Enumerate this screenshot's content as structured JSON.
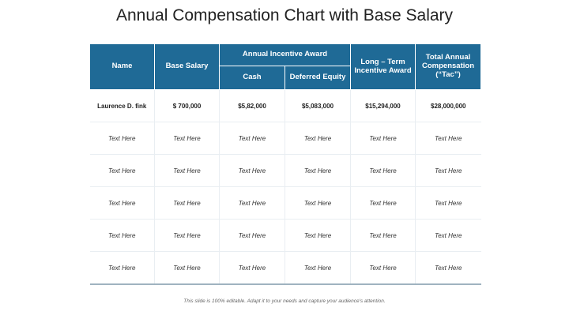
{
  "title": "Annual Compensation Chart with Base Salary",
  "headers": {
    "name": "Name",
    "base_salary": "Base Salary",
    "annual_incentive_award": "Annual Incentive Award",
    "cash": "Cash",
    "deferred_equity": "Deferred Equity",
    "long_term_incentive_award": "Long – Term Incentive Award",
    "total_annual_compensation": "Total Annual Compensation (“Tac”)"
  },
  "rows": [
    [
      "Laurence D. fink",
      "$ 700,000",
      "$5,82,000",
      "$5,083,000",
      "$15,294,000",
      "$28,000,000"
    ],
    [
      "Text Here",
      "Text Here",
      "Text Here",
      "Text Here",
      "Text Here",
      "Text Here"
    ],
    [
      "Text Here",
      "Text Here",
      "Text Here",
      "Text Here",
      "Text Here",
      "Text Here"
    ],
    [
      "Text Here",
      "Text Here",
      "Text Here",
      "Text Here",
      "Text Here",
      "Text Here"
    ],
    [
      "Text Here",
      "Text Here",
      "Text Here",
      "Text Here",
      "Text Here",
      "Text Here"
    ],
    [
      "Text Here",
      "Text Here",
      "Text Here",
      "Text Here",
      "Text Here",
      "Text Here"
    ]
  ],
  "footer": "This slide is 100% editable. Adapt it to your needs and capture your audience's attention.",
  "colors": {
    "header_bg": "#1f6a96",
    "header_text": "#ffffff"
  }
}
